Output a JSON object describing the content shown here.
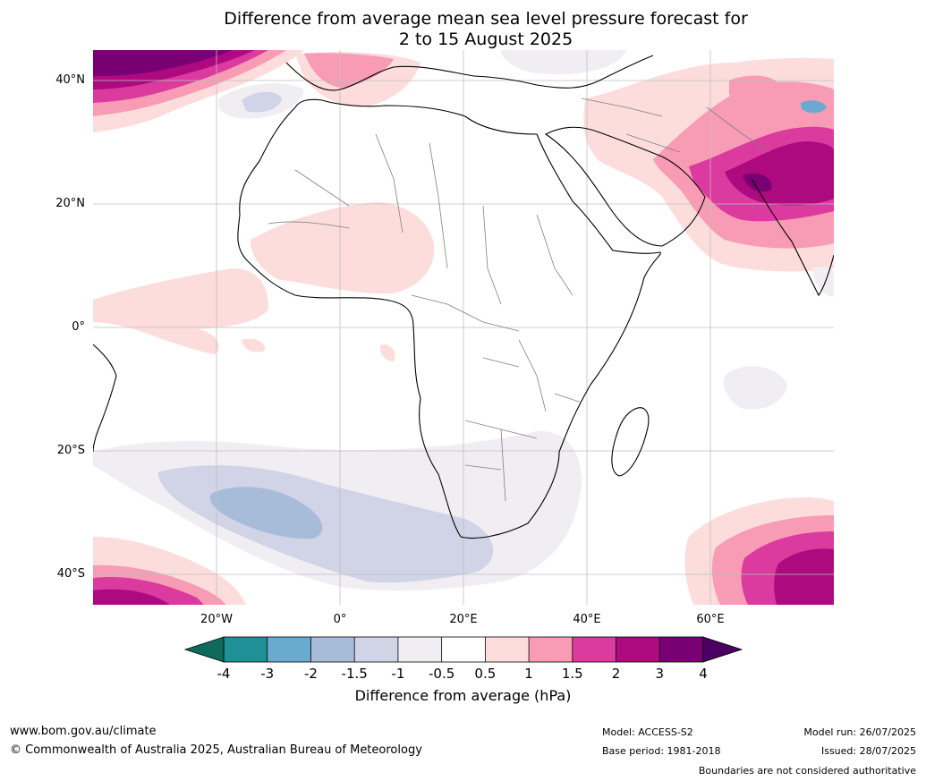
{
  "title": {
    "line1": "Difference from average mean sea level pressure forecast for",
    "line2": "2 to 15 August 2025"
  },
  "map": {
    "lat_labels": [
      "40°N",
      "20°N",
      "0°",
      "20°S",
      "40°S"
    ],
    "lon_labels": [
      "20°W",
      "0°",
      "20°E",
      "40°E",
      "60°E"
    ],
    "ocean_color": "#ffffff",
    "land_border_color": "#000000",
    "country_border_color": "#808080"
  },
  "colorbar": {
    "ticks": [
      "-4",
      "-3",
      "-2",
      "-1.5",
      "-1",
      "-0.5",
      "0.5",
      "1",
      "1.5",
      "2",
      "3",
      "4"
    ],
    "colors": [
      "#0e6b5c",
      "#1f9196",
      "#6aaad0",
      "#a7bcd9",
      "#d1d3e6",
      "#f1eef3",
      "#ffffff",
      "#fddcdc",
      "#f89bb4",
      "#db3a9e",
      "#ad0a80",
      "#780073",
      "#4a0060"
    ],
    "label": "Difference from average (hPa)"
  },
  "footer": {
    "url": "www.bom.gov.au/climate",
    "copyright": "© Commonwealth of Australia 2025, Australian Bureau of Meteorology",
    "model": "Model: ACCESS-S2",
    "base_period": "Base period: 1981-2018",
    "model_run": "Model run: 26/07/2025",
    "issued": "Issued: 28/07/2025",
    "disclaimer": "Boundaries are not considered authoritative"
  }
}
